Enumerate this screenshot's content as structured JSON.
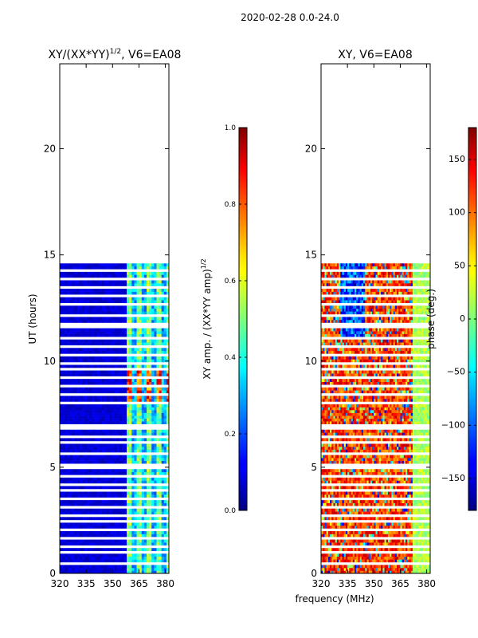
{
  "figure": {
    "suptitle": "2020-02-28 0.0-24.0",
    "shared_xlabel": "frequency (MHz)"
  },
  "chart_data": [
    {
      "type": "heatmap",
      "title_base": "XY/(XX*YY)",
      "title_exponent": "1/2",
      "title_suffix": ", V6=EA08",
      "xlabel": "frequency (MHz)",
      "ylabel": "UT (hours)",
      "xlim": [
        320,
        382
      ],
      "ylim": [
        0,
        24
      ],
      "xticks": [
        320,
        335,
        350,
        365,
        380
      ],
      "yticks": [
        0,
        5,
        10,
        15,
        20
      ],
      "data_coverage_ut": [
        0,
        14.6
      ],
      "colorbar": {
        "label_base": "XY amp. / (XX*YY amp)",
        "label_exponent": "1/2",
        "range": [
          0.0,
          1.0
        ],
        "ticks": [
          "0.0",
          "0.2",
          "0.4",
          "0.6",
          "0.8",
          "1.0"
        ],
        "colormap": "jet"
      }
    },
    {
      "type": "heatmap",
      "title": "XY, V6=EA08",
      "xlabel": "frequency (MHz)",
      "ylim": [
        0,
        24
      ],
      "xlim": [
        320,
        382
      ],
      "xticks": [
        320,
        335,
        350,
        365,
        380
      ],
      "yticks": [
        0,
        5,
        10,
        15,
        20
      ],
      "data_coverage_ut": [
        0,
        14.6
      ],
      "colorbar": {
        "label": "phase (deg.)",
        "range": [
          -180,
          180
        ],
        "ticks": [
          "150",
          "100",
          "50",
          "0",
          "−50",
          "−100",
          "−150"
        ],
        "colormap": "jet"
      }
    }
  ]
}
